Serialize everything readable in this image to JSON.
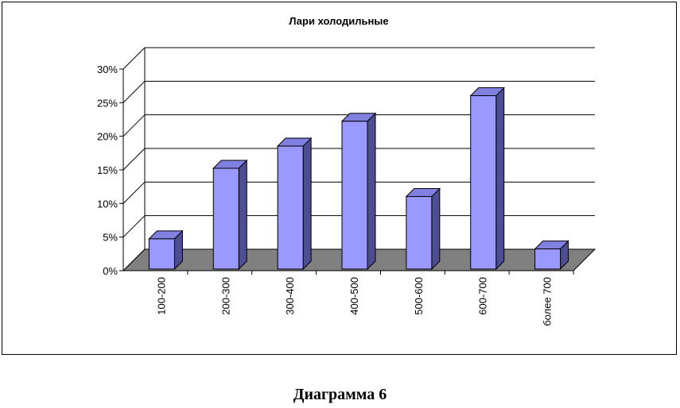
{
  "caption": "Диаграмма 6",
  "chart_data": {
    "type": "bar",
    "title": "Лари холодильные",
    "xlabel": "",
    "ylabel": "",
    "categories": [
      "100-200",
      "200-300",
      "300-400",
      "400-500",
      "500-600",
      "600-700",
      "более 700"
    ],
    "values": [
      4.5,
      15,
      18.3,
      22,
      10.8,
      25.8,
      3
    ],
    "ylim": [
      0,
      30
    ],
    "yticks": [
      0,
      5,
      10,
      15,
      20,
      25,
      30
    ],
    "ytick_labels": [
      "0%",
      "5%",
      "10%",
      "15%",
      "20%",
      "25%",
      "30%"
    ],
    "value_unit": "%",
    "grid": true,
    "style": "3d-column",
    "colors": {
      "bar_front": "#9999ff",
      "bar_side": "#4d4d94",
      "bar_top": "#8080e0",
      "floor": "#808080"
    }
  }
}
